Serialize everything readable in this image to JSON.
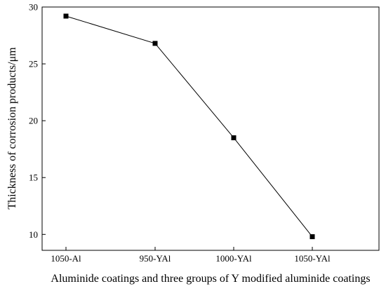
{
  "chart_data": {
    "type": "line",
    "categories": [
      "1050-Al",
      "950-YAl",
      "1000-YAl",
      "1050-YAl"
    ],
    "values": [
      29.2,
      26.8,
      18.5,
      9.8
    ],
    "title": "",
    "xlabel": "Aluminide coatings and three groups of Y modified aluminide coatings",
    "ylabel": "Thickness of corrosion products/μm",
    "ylim": [
      8.6,
      30
    ],
    "yticks": [
      10,
      15,
      20,
      25,
      30
    ],
    "grid": false,
    "legend": "none",
    "marker": "square",
    "line_color": "#000000",
    "marker_color": "#000000"
  }
}
